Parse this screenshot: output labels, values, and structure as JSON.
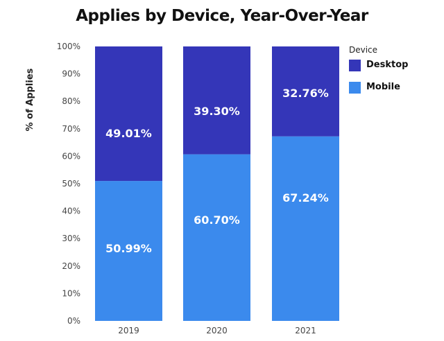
{
  "title": "Applies by Device, Year-Over-Year",
  "legend": {
    "title": "Device",
    "items": [
      {
        "label": "Desktop",
        "color": "#3436b8"
      },
      {
        "label": "Mobile",
        "color": "#3b8aed"
      }
    ]
  },
  "chart_data": {
    "type": "bar",
    "stacked": true,
    "title": "Applies by Device, Year-Over-Year",
    "xlabel": "",
    "ylabel": "% of Applies",
    "ylim": [
      0,
      100
    ],
    "yticks": [
      "0%",
      "10%",
      "20%",
      "30%",
      "40%",
      "50%",
      "60%",
      "70%",
      "80%",
      "90%",
      "100%"
    ],
    "categories": [
      "2019",
      "2020",
      "2021"
    ],
    "series": [
      {
        "name": "Mobile",
        "values": [
          50.99,
          60.7,
          67.24
        ],
        "labels": [
          "50.99%",
          "60.70%",
          "67.24%"
        ],
        "color": "#3b8aed"
      },
      {
        "name": "Desktop",
        "values": [
          49.01,
          39.3,
          32.76
        ],
        "labels": [
          "49.01%",
          "39.30%",
          "32.76%"
        ],
        "color": "#3436b8"
      }
    ],
    "legend_position": "top-right",
    "grid": false
  }
}
